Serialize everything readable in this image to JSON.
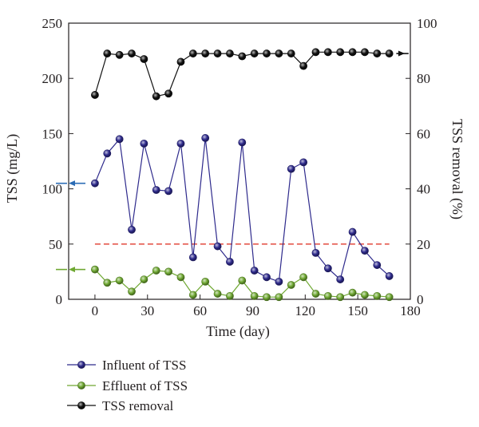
{
  "chart_data": {
    "type": "line",
    "title": "",
    "xlabel": "Time (day)",
    "ylabel_left": "TSS (mg/L)",
    "ylabel_right": "TSS removal (%)",
    "xlim": [
      -15,
      180
    ],
    "ylim_left": [
      0,
      250
    ],
    "ylim_right": [
      0,
      100
    ],
    "x_ticks": [
      0,
      30,
      60,
      90,
      120,
      150,
      180
    ],
    "y_ticks_left": [
      0,
      50,
      100,
      150,
      200,
      250
    ],
    "y_ticks_right": [
      0,
      20,
      40,
      60,
      80,
      100
    ],
    "grid": false,
    "legend_position": "below-plot",
    "reference_line": {
      "axis": "left",
      "value": 50,
      "x_range": [
        0,
        168
      ],
      "color": "#e03a2d",
      "style": "dashed"
    },
    "axis_arrows": [
      {
        "series": "Influent of TSS",
        "axis": "left",
        "y": 105,
        "color": "#2b6cb5"
      },
      {
        "series": "Effluent of TSS",
        "axis": "left",
        "y": 27,
        "color": "#6fa832"
      },
      {
        "series": "TSS removal",
        "axis": "right",
        "y": 89,
        "color": "#111111"
      }
    ],
    "series": [
      {
        "name": "Influent of TSS",
        "axis": "left",
        "color": "#2e2a8c",
        "x": [
          0,
          7,
          14,
          21,
          28,
          35,
          42,
          49,
          56,
          63,
          70,
          77,
          84,
          91,
          98,
          105,
          112,
          119,
          126,
          133,
          140,
          147,
          154,
          161,
          168
        ],
        "values": [
          105,
          132,
          145,
          63,
          141,
          99,
          98,
          141,
          38,
          146,
          48,
          34,
          142,
          26,
          20,
          16,
          118,
          124,
          42,
          28,
          18,
          61,
          44,
          31,
          21
        ]
      },
      {
        "name": "Effluent of TSS",
        "axis": "left",
        "color": "#6fa832",
        "x": [
          0,
          7,
          14,
          21,
          28,
          35,
          42,
          49,
          56,
          63,
          70,
          77,
          84,
          91,
          98,
          105,
          112,
          119,
          126,
          133,
          140,
          147,
          154,
          161,
          168
        ],
        "values": [
          27,
          15,
          17,
          7,
          18,
          26,
          25,
          20,
          4,
          16,
          5,
          3,
          17,
          3,
          2,
          2,
          13,
          20,
          5,
          3,
          2,
          6,
          4,
          3,
          2
        ]
      },
      {
        "name": "TSS removal",
        "axis": "right",
        "color": "#111111",
        "x": [
          0,
          7,
          14,
          21,
          28,
          35,
          42,
          49,
          56,
          63,
          70,
          77,
          84,
          91,
          98,
          105,
          112,
          119,
          126,
          133,
          140,
          147,
          154,
          161,
          168
        ],
        "values": [
          74,
          89,
          88.5,
          89,
          87,
          73.5,
          74.5,
          86,
          89,
          89,
          89,
          89,
          88,
          89,
          89,
          89,
          89,
          84.5,
          89.5,
          89.5,
          89.5,
          89.5,
          89.5,
          89,
          89
        ]
      }
    ]
  }
}
